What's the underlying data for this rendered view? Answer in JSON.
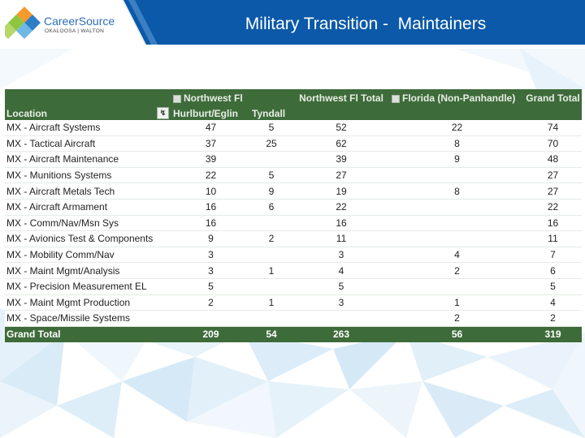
{
  "header": {
    "title": "Military Transition -  Maintainers",
    "logo_line1": "CareerSource",
    "logo_line2": "OKALOOSA | WALTON",
    "color_bar": "#0b59a8"
  },
  "table": {
    "header_row1": {
      "northwest_group": "Northwest Fl",
      "northwest_total": "Northwest Fl Total",
      "florida_non_panhandle": "Florida (Non-Panhandle)",
      "grand_total": "Grand Total"
    },
    "header_row2": {
      "location": "Location",
      "hurlburt_eglin": "Hurlburt/Eglin",
      "tyndall": "Tyndall"
    },
    "rows": [
      {
        "location": "MX - Aircraft Systems",
        "hurlburt_eglin": "47",
        "tyndall": "5",
        "northwest_total": "52",
        "florida_non_panhandle": "22",
        "grand_total": "74"
      },
      {
        "location": "MX - Tactical Aircraft",
        "hurlburt_eglin": "37",
        "tyndall": "25",
        "northwest_total": "62",
        "florida_non_panhandle": "8",
        "grand_total": "70"
      },
      {
        "location": "MX - Aircraft Maintenance",
        "hurlburt_eglin": "39",
        "tyndall": "",
        "northwest_total": "39",
        "florida_non_panhandle": "9",
        "grand_total": "48"
      },
      {
        "location": "MX - Munitions Systems",
        "hurlburt_eglin": "22",
        "tyndall": "5",
        "northwest_total": "27",
        "florida_non_panhandle": "",
        "grand_total": "27"
      },
      {
        "location": "MX - Aircraft Metals Tech",
        "hurlburt_eglin": "10",
        "tyndall": "9",
        "northwest_total": "19",
        "florida_non_panhandle": "8",
        "grand_total": "27"
      },
      {
        "location": "MX - Aircraft Armament",
        "hurlburt_eglin": "16",
        "tyndall": "6",
        "northwest_total": "22",
        "florida_non_panhandle": "",
        "grand_total": "22"
      },
      {
        "location": "MX - Comm/Nav/Msn Sys",
        "hurlburt_eglin": "16",
        "tyndall": "",
        "northwest_total": "16",
        "florida_non_panhandle": "",
        "grand_total": "16"
      },
      {
        "location": "MX - Avionics Test & Components",
        "hurlburt_eglin": "9",
        "tyndall": "2",
        "northwest_total": "11",
        "florida_non_panhandle": "",
        "grand_total": "11"
      },
      {
        "location": "MX - Mobility Comm/Nav",
        "hurlburt_eglin": "3",
        "tyndall": "",
        "northwest_total": "3",
        "florida_non_panhandle": "4",
        "grand_total": "7"
      },
      {
        "location": "MX - Maint Mgmt/Analysis",
        "hurlburt_eglin": "3",
        "tyndall": "1",
        "northwest_total": "4",
        "florida_non_panhandle": "2",
        "grand_total": "6"
      },
      {
        "location": "MX - Precision Measurement EL",
        "hurlburt_eglin": "5",
        "tyndall": "",
        "northwest_total": "5",
        "florida_non_panhandle": "",
        "grand_total": "5"
      },
      {
        "location": "MX - Maint Mgmt Production",
        "hurlburt_eglin": "2",
        "tyndall": "1",
        "northwest_total": "3",
        "florida_non_panhandle": "1",
        "grand_total": "4"
      },
      {
        "location": "MX - Space/Missile Systems",
        "hurlburt_eglin": "",
        "tyndall": "",
        "northwest_total": "",
        "florida_non_panhandle": "2",
        "grand_total": "2"
      }
    ],
    "footer": {
      "label": "Grand Total",
      "hurlburt_eglin": "209",
      "tyndall": "54",
      "northwest_total": "263",
      "florida_non_panhandle": "56",
      "grand_total": "319"
    }
  }
}
